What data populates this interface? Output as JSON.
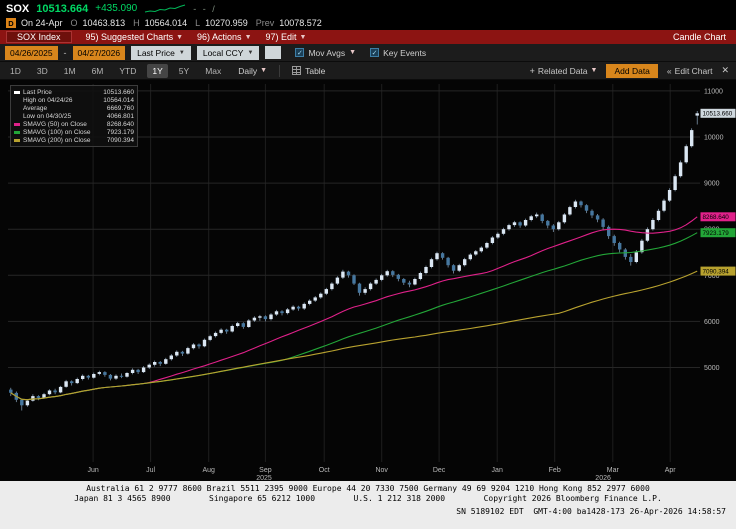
{
  "header": {
    "ticker": "SOX",
    "last_price": "10513.664",
    "change": "+435.090",
    "marks": "- - /",
    "session": {
      "badge": "D",
      "date_label": "On 24-Apr",
      "open_label": "O",
      "open": "10463.813",
      "high_label": "H",
      "high": "10564.014",
      "low_label": "L",
      "low": "10270.959",
      "prev_label": "Prev",
      "prev": "10078.572"
    }
  },
  "menubar": {
    "security_tag": "SOX Index",
    "items": [
      {
        "label": "95) Suggested Charts"
      },
      {
        "label": "96) Actions"
      },
      {
        "label": "97) Edit"
      }
    ],
    "right_label": "Candle Chart"
  },
  "toolbar": {
    "date_from": "04/26/2025",
    "date_sep": "-",
    "date_to": "04/27/2026",
    "price_source": "Last Price",
    "currency": "Local CCY",
    "mov_avgs_label": "Mov Avgs",
    "key_events_label": "Key Events",
    "periods": [
      "1D",
      "3D",
      "1M",
      "6M",
      "YTD",
      "1Y",
      "5Y",
      "Max"
    ],
    "selected_period": "1Y",
    "frequency": "Daily",
    "table_label": "Table",
    "related_data_label": "Related Data",
    "add_data_label": "Add Data",
    "edit_chart_label": "Edit Chart"
  },
  "legend": {
    "rows": [
      {
        "label": "Last Price",
        "value": "10513.660",
        "color": "#ffffff"
      },
      {
        "label": "High on 04/24/26",
        "value": "10564.014",
        "color": ""
      },
      {
        "label": "Average",
        "value": "6669.760",
        "color": ""
      },
      {
        "label": "Low on 04/30/25",
        "value": "4066.801",
        "color": ""
      },
      {
        "label": "SMAVG (50)  on Close",
        "value": "8268.640",
        "color": "#e0218a"
      },
      {
        "label": "SMAVG (100) on Close",
        "value": "7923.179",
        "color": "#23a638"
      },
      {
        "label": "SMAVG (200) on Close",
        "value": "7090.394",
        "color": "#b8a22f"
      }
    ]
  },
  "chart_data": {
    "type": "candlestick",
    "title": "SOX Index 1Y Daily Candle Chart",
    "ylim": [
      2950,
      11150
    ],
    "yticks": [
      5000,
      6000,
      7000,
      8000,
      9000,
      10000,
      11000
    ],
    "months": [
      {
        "label": "Jun",
        "pos": 0.123
      },
      {
        "label": "Jul",
        "pos": 0.206
      },
      {
        "label": "Aug",
        "pos": 0.29
      },
      {
        "label": "Sep",
        "pos": 0.372
      },
      {
        "label": "Oct",
        "pos": 0.457
      },
      {
        "label": "Nov",
        "pos": 0.54
      },
      {
        "label": "Dec",
        "pos": 0.623
      },
      {
        "label": "Jan",
        "pos": 0.707
      },
      {
        "label": "Feb",
        "pos": 0.79
      },
      {
        "label": "Mar",
        "pos": 0.874
      },
      {
        "label": "Apr",
        "pos": 0.957
      }
    ],
    "years": [
      {
        "label": "2025",
        "pos": 0.37
      },
      {
        "label": "2026",
        "pos": 0.86
      }
    ],
    "colors": {
      "bg": "#050505",
      "up": "#dbe7f3",
      "down": "#46779f",
      "wick": "#8fa9c2",
      "grid_h": "#262626",
      "grid_v": "#1e1e1e"
    },
    "last_price": {
      "value": 10513.66,
      "badge_bg": "#cfd8de"
    },
    "smas": [
      {
        "name": "SMAVG (50) on Close",
        "window": 25,
        "value": 8268.64,
        "color": "#e0218a"
      },
      {
        "name": "SMAVG (100) on Close",
        "window": 50,
        "value": 7923.179,
        "color": "#23a638"
      },
      {
        "name": "SMAVG (200) on Close",
        "window": 100,
        "value": 7090.394,
        "color": "#b8a22f"
      }
    ],
    "candles": [
      [
        4520,
        4560,
        4380,
        4450
      ],
      [
        4450,
        4480,
        4250,
        4300
      ],
      [
        4300,
        4320,
        4066.8,
        4180
      ],
      [
        4180,
        4300,
        4150,
        4280
      ],
      [
        4280,
        4420,
        4260,
        4380
      ],
      [
        4380,
        4400,
        4290,
        4340
      ],
      [
        4340,
        4450,
        4320,
        4420
      ],
      [
        4420,
        4530,
        4400,
        4500
      ],
      [
        4500,
        4540,
        4420,
        4460
      ],
      [
        4460,
        4600,
        4440,
        4580
      ],
      [
        4580,
        4730,
        4560,
        4700
      ],
      [
        4700,
        4720,
        4610,
        4660
      ],
      [
        4660,
        4780,
        4640,
        4750
      ],
      [
        4750,
        4850,
        4720,
        4820
      ],
      [
        4820,
        4840,
        4740,
        4780
      ],
      [
        4780,
        4890,
        4760,
        4860
      ],
      [
        4860,
        4930,
        4830,
        4900
      ],
      [
        4900,
        4920,
        4800,
        4840
      ],
      [
        4840,
        4860,
        4720,
        4760
      ],
      [
        4760,
        4850,
        4730,
        4820
      ],
      [
        4820,
        4870,
        4770,
        4800
      ],
      [
        4800,
        4900,
        4780,
        4880
      ],
      [
        4880,
        4980,
        4850,
        4950
      ],
      [
        4950,
        4970,
        4860,
        4900
      ],
      [
        4900,
        5030,
        4880,
        5000
      ],
      [
        5000,
        5090,
        4970,
        5060
      ],
      [
        5060,
        5150,
        5020,
        5120
      ],
      [
        5120,
        5140,
        5030,
        5080
      ],
      [
        5080,
        5210,
        5060,
        5180
      ],
      [
        5180,
        5290,
        5150,
        5260
      ],
      [
        5260,
        5370,
        5230,
        5340
      ],
      [
        5340,
        5360,
        5250,
        5300
      ],
      [
        5300,
        5450,
        5280,
        5420
      ],
      [
        5420,
        5530,
        5390,
        5500
      ],
      [
        5500,
        5520,
        5410,
        5460
      ],
      [
        5460,
        5630,
        5440,
        5600
      ],
      [
        5600,
        5710,
        5570,
        5680
      ],
      [
        5680,
        5780,
        5650,
        5750
      ],
      [
        5750,
        5850,
        5720,
        5820
      ],
      [
        5820,
        5840,
        5730,
        5780
      ],
      [
        5780,
        5930,
        5760,
        5900
      ],
      [
        5900,
        5990,
        5870,
        5960
      ],
      [
        5960,
        5980,
        5840,
        5880
      ],
      [
        5880,
        6050,
        5860,
        6020
      ],
      [
        6020,
        6110,
        5990,
        6080
      ],
      [
        6080,
        6140,
        6010,
        6110
      ],
      [
        6110,
        6130,
        6000,
        6050
      ],
      [
        6050,
        6180,
        6020,
        6150
      ],
      [
        6150,
        6250,
        6120,
        6220
      ],
      [
        6220,
        6240,
        6130,
        6180
      ],
      [
        6180,
        6290,
        6150,
        6260
      ],
      [
        6260,
        6350,
        6230,
        6320
      ],
      [
        6320,
        6340,
        6230,
        6280
      ],
      [
        6280,
        6410,
        6250,
        6380
      ],
      [
        6380,
        6480,
        6350,
        6450
      ],
      [
        6450,
        6550,
        6420,
        6520
      ],
      [
        6520,
        6630,
        6490,
        6600
      ],
      [
        6600,
        6730,
        6570,
        6700
      ],
      [
        6700,
        6850,
        6670,
        6820
      ],
      [
        6820,
        6980,
        6790,
        6950
      ],
      [
        6950,
        7120,
        6920,
        7080
      ],
      [
        7080,
        7100,
        6950,
        7000
      ],
      [
        7000,
        7020,
        6790,
        6820
      ],
      [
        6820,
        6840,
        6560,
        6620
      ],
      [
        6620,
        6740,
        6580,
        6700
      ],
      [
        6700,
        6850,
        6670,
        6820
      ],
      [
        6820,
        6930,
        6790,
        6900
      ],
      [
        6900,
        7030,
        6870,
        7000
      ],
      [
        7000,
        7120,
        6970,
        7090
      ],
      [
        7090,
        7110,
        6960,
        7010
      ],
      [
        7010,
        7030,
        6870,
        6920
      ],
      [
        6920,
        6940,
        6790,
        6840
      ],
      [
        6840,
        6880,
        6740,
        6800
      ],
      [
        6800,
        6950,
        6780,
        6920
      ],
      [
        6920,
        7080,
        6890,
        7050
      ],
      [
        7050,
        7210,
        7020,
        7180
      ],
      [
        7180,
        7380,
        7150,
        7350
      ],
      [
        7350,
        7510,
        7320,
        7480
      ],
      [
        7480,
        7500,
        7340,
        7380
      ],
      [
        7380,
        7400,
        7170,
        7220
      ],
      [
        7220,
        7240,
        7040,
        7100
      ],
      [
        7100,
        7250,
        7070,
        7220
      ],
      [
        7220,
        7380,
        7190,
        7350
      ],
      [
        7350,
        7480,
        7320,
        7450
      ],
      [
        7450,
        7550,
        7420,
        7520
      ],
      [
        7520,
        7630,
        7490,
        7600
      ],
      [
        7600,
        7730,
        7570,
        7700
      ],
      [
        7700,
        7850,
        7670,
        7820
      ],
      [
        7820,
        7930,
        7790,
        7900
      ],
      [
        7900,
        8030,
        7870,
        8000
      ],
      [
        8000,
        8120,
        7970,
        8090
      ],
      [
        8090,
        8180,
        8050,
        8150
      ],
      [
        8150,
        8170,
        8030,
        8080
      ],
      [
        8080,
        8230,
        8050,
        8200
      ],
      [
        8200,
        8310,
        8170,
        8280
      ],
      [
        8280,
        8360,
        8240,
        8320
      ],
      [
        8320,
        8340,
        8130,
        8180
      ],
      [
        8180,
        8200,
        8020,
        8080
      ],
      [
        8080,
        8110,
        7940,
        8000
      ],
      [
        8000,
        8180,
        7970,
        8150
      ],
      [
        8150,
        8350,
        8120,
        8320
      ],
      [
        8320,
        8510,
        8290,
        8480
      ],
      [
        8480,
        8640,
        8450,
        8600
      ],
      [
        8600,
        8620,
        8470,
        8520
      ],
      [
        8520,
        8540,
        8350,
        8400
      ],
      [
        8400,
        8430,
        8240,
        8300
      ],
      [
        8300,
        8330,
        8150,
        8210
      ],
      [
        8210,
        8240,
        7990,
        8050
      ],
      [
        8050,
        8080,
        7790,
        7850
      ],
      [
        7850,
        7880,
        7640,
        7700
      ],
      [
        7700,
        7730,
        7500,
        7560
      ],
      [
        7560,
        7590,
        7340,
        7400
      ],
      [
        7400,
        7460,
        7210,
        7290
      ],
      [
        7290,
        7550,
        7260,
        7500
      ],
      [
        7500,
        7790,
        7470,
        7750
      ],
      [
        7750,
        8040,
        7720,
        8000
      ],
      [
        8000,
        8240,
        7970,
        8200
      ],
      [
        8200,
        8440,
        8170,
        8400
      ],
      [
        8400,
        8660,
        8370,
        8620
      ],
      [
        8620,
        8890,
        8590,
        8850
      ],
      [
        8850,
        9190,
        8820,
        9150
      ],
      [
        9150,
        9490,
        9120,
        9450
      ],
      [
        9450,
        9840,
        9420,
        9800
      ],
      [
        9800,
        10190,
        9770,
        10150
      ],
      [
        10463.813,
        10564.014,
        10270.959,
        10513.66
      ]
    ]
  },
  "footer": {
    "line1": "Australia 61 2 9777 8600 Brazil 5511 2395 9000 Europe 44 20 7330 7500 Germany 49 69 9204 1210 Hong Kong 852 2977 6000",
    "line2": "Japan 81 3 4565 8900        Singapore 65 6212 1000        U.S. 1 212 318 2000        Copyright 2026 Bloomberg Finance L.P.",
    "line3": "SN 5189102 EDT  GMT-4:00 ba1428-173 26-Apr-2026 14:58:57"
  }
}
